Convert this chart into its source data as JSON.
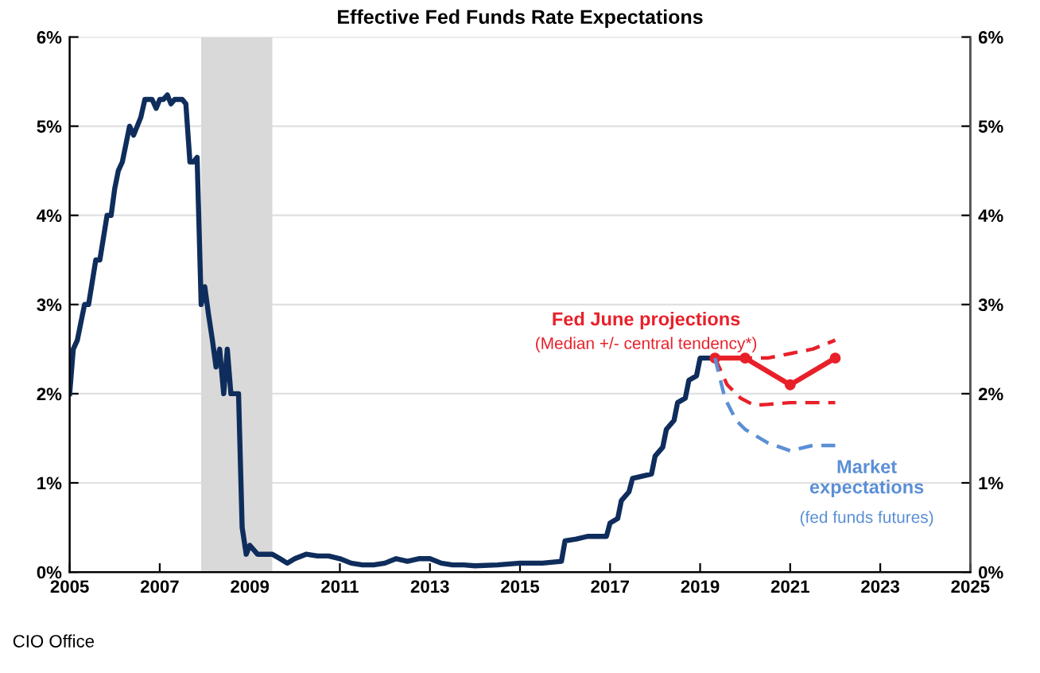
{
  "chart_data": {
    "type": "line",
    "title": "Effective Fed Funds Rate Expectations",
    "xlim": [
      2005,
      2025
    ],
    "xticks": [
      2005,
      2007,
      2009,
      2011,
      2013,
      2015,
      2017,
      2019,
      2021,
      2023,
      2025
    ],
    "ylim": [
      0,
      6
    ],
    "yticks": [
      {
        "value": 0,
        "label": "0%"
      },
      {
        "value": 1,
        "label": "1%"
      },
      {
        "value": 2,
        "label": "2%"
      },
      {
        "value": 3,
        "label": "3%"
      },
      {
        "value": 4,
        "label": "4%"
      },
      {
        "value": 5,
        "label": "5%"
      },
      {
        "value": 6,
        "label": "6%"
      }
    ],
    "y2lim": [
      0,
      6
    ],
    "y2ticks": [
      {
        "value": 0,
        "label": "0%"
      },
      {
        "value": 1,
        "label": "1%"
      },
      {
        "value": 2,
        "label": "2%"
      },
      {
        "value": 3,
        "label": "3%"
      },
      {
        "value": 4,
        "label": "4%"
      },
      {
        "value": 5,
        "label": "5%"
      },
      {
        "value": 6,
        "label": "6%"
      }
    ],
    "grid": "y",
    "legend": false,
    "bands": [
      {
        "axis": "x",
        "from": 2007.92,
        "to": 2009.5,
        "color": "#d9d9d9"
      }
    ],
    "series": [
      {
        "color": "#0f2d5c",
        "line_style": "solid",
        "marker": "none",
        "x": [
          2005.0,
          2005.08,
          2005.17,
          2005.25,
          2005.33,
          2005.42,
          2005.5,
          2005.58,
          2005.67,
          2005.75,
          2005.83,
          2005.92,
          2006.0,
          2006.08,
          2006.17,
          2006.25,
          2006.33,
          2006.42,
          2006.5,
          2006.58,
          2006.67,
          2006.75,
          2006.83,
          2006.92,
          2007.0,
          2007.08,
          2007.17,
          2007.25,
          2007.33,
          2007.42,
          2007.5,
          2007.58,
          2007.67,
          2007.75,
          2007.83,
          2007.92,
          2008.0,
          2008.08,
          2008.17,
          2008.25,
          2008.33,
          2008.42,
          2008.5,
          2008.58,
          2008.67,
          2008.75,
          2008.83,
          2008.92,
          2009.0,
          2009.17,
          2009.33,
          2009.5,
          2009.67,
          2009.83,
          2010.0,
          2010.25,
          2010.5,
          2010.75,
          2011.0,
          2011.25,
          2011.5,
          2011.75,
          2012.0,
          2012.25,
          2012.5,
          2012.75,
          2013.0,
          2013.25,
          2013.5,
          2013.75,
          2014.0,
          2014.5,
          2015.0,
          2015.5,
          2015.92,
          2016.0,
          2016.25,
          2016.5,
          2016.92,
          2017.0,
          2017.17,
          2017.25,
          2017.42,
          2017.5,
          2017.92,
          2018.0,
          2018.17,
          2018.25,
          2018.42,
          2018.5,
          2018.67,
          2018.75,
          2018.92,
          2019.0,
          2019.33
        ],
        "values": [
          2.0,
          2.5,
          2.6,
          2.8,
          3.0,
          3.0,
          3.25,
          3.5,
          3.5,
          3.75,
          4.0,
          4.0,
          4.3,
          4.5,
          4.6,
          4.8,
          5.0,
          4.9,
          5.0,
          5.1,
          5.3,
          5.3,
          5.3,
          5.2,
          5.3,
          5.3,
          5.35,
          5.25,
          5.3,
          5.3,
          5.3,
          5.25,
          4.6,
          4.6,
          4.65,
          3.0,
          3.2,
          2.9,
          2.6,
          2.3,
          2.5,
          2.0,
          2.5,
          2.0,
          2.0,
          2.0,
          0.5,
          0.2,
          0.3,
          0.2,
          0.2,
          0.2,
          0.15,
          0.1,
          0.15,
          0.2,
          0.18,
          0.18,
          0.15,
          0.1,
          0.08,
          0.08,
          0.1,
          0.15,
          0.12,
          0.15,
          0.15,
          0.1,
          0.08,
          0.08,
          0.07,
          0.08,
          0.1,
          0.1,
          0.12,
          0.35,
          0.37,
          0.4,
          0.4,
          0.55,
          0.6,
          0.8,
          0.9,
          1.05,
          1.1,
          1.3,
          1.4,
          1.6,
          1.7,
          1.9,
          1.95,
          2.15,
          2.2,
          2.4,
          2.4
        ]
      },
      {
        "color": "#e8202a",
        "line_style": "solid",
        "marker": "circle",
        "x": [
          2019.33,
          2020.0,
          2021.0,
          2022.0
        ],
        "values": [
          2.4,
          2.4,
          2.1,
          2.4
        ]
      },
      {
        "color": "#e8202a",
        "line_style": "dashed",
        "marker": "none",
        "x": [
          2019.33,
          2020.0,
          2020.5,
          2021.0,
          2021.5,
          2022.0
        ],
        "values": [
          2.4,
          2.4,
          2.4,
          2.45,
          2.5,
          2.6
        ]
      },
      {
        "color": "#e8202a",
        "line_style": "dashed",
        "marker": "none",
        "x": [
          2019.33,
          2019.6,
          2019.9,
          2020.2,
          2020.5,
          2021.0,
          2022.0
        ],
        "values": [
          2.4,
          2.1,
          1.95,
          1.87,
          1.88,
          1.9,
          1.9
        ]
      },
      {
        "color": "#5b8fd6",
        "line_style": "dashed",
        "marker": "none",
        "x": [
          2019.33,
          2019.55,
          2019.8,
          2020.0,
          2020.5,
          2021.0,
          2021.5,
          2022.0
        ],
        "values": [
          2.4,
          1.95,
          1.7,
          1.6,
          1.45,
          1.36,
          1.42,
          1.42
        ]
      }
    ],
    "annotations": [
      "Fed June projections",
      "(Median +/- central tendency*)",
      "Market\nexpectations",
      "(fed funds futures)",
      "CIO Office"
    ]
  }
}
